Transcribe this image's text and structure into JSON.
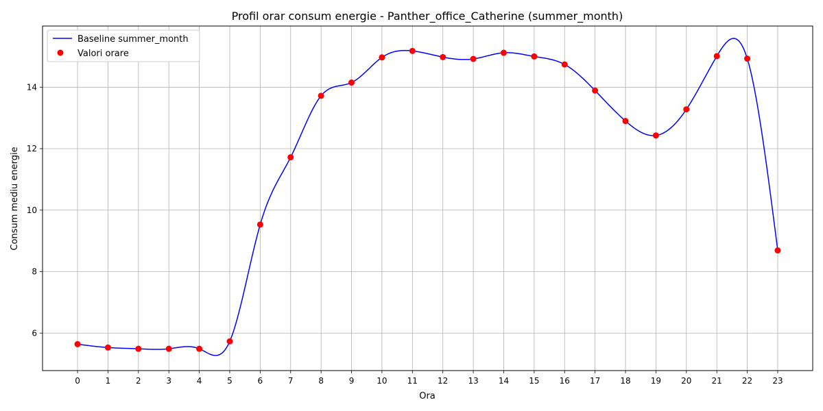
{
  "chart_data": {
    "type": "line",
    "title": "Profil orar consum energie - Panther_office_Catherine (summer_month)",
    "xlabel": "Ora",
    "ylabel": "Consum mediu energie",
    "x": [
      0,
      1,
      2,
      3,
      4,
      5,
      6,
      7,
      8,
      9,
      10,
      11,
      12,
      13,
      14,
      15,
      16,
      17,
      18,
      19,
      20,
      21,
      22,
      23
    ],
    "xlim": [
      -1.15,
      24.15
    ],
    "ylim": [
      4.78,
      15.99
    ],
    "yticks": [
      6,
      8,
      10,
      12,
      14
    ],
    "grid": true,
    "legend_position": "top-left",
    "series": [
      {
        "name": "Baseline summer_month",
        "kind": "line",
        "color": "#0000ff",
        "values": [
          5.64,
          5.53,
          5.49,
          5.49,
          5.49,
          5.73,
          9.53,
          11.72,
          13.72,
          14.15,
          14.97,
          15.18,
          14.98,
          14.92,
          15.12,
          15.0,
          14.74,
          13.89,
          12.9,
          12.43,
          13.28,
          15.01,
          14.93,
          8.69
        ]
      },
      {
        "name": "Valori orare",
        "kind": "scatter",
        "color": "#ff0000",
        "values": [
          5.64,
          5.53,
          5.49,
          5.49,
          5.49,
          5.73,
          9.53,
          11.72,
          13.72,
          14.15,
          14.97,
          15.18,
          14.98,
          14.92,
          15.12,
          15.0,
          14.74,
          13.89,
          12.9,
          12.43,
          13.28,
          15.01,
          14.93,
          8.69
        ]
      }
    ]
  }
}
